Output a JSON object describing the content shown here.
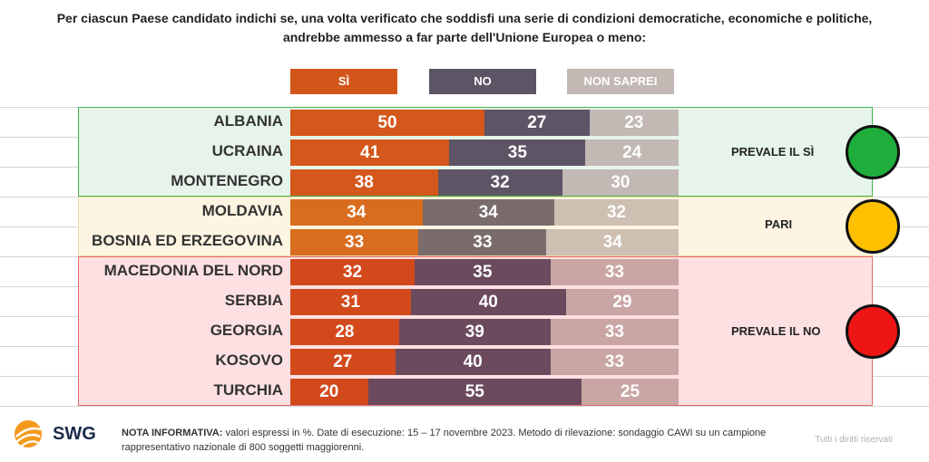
{
  "title_lines": [
    "Per ciascun Paese candidato indichi se, una volta verificato che soddisfi una serie di condizioni democratiche, economiche e politiche,",
    "andrebbe ammesso a far parte dell'Unione Europea o meno:"
  ],
  "legend": [
    "SÌ",
    "NO",
    "NON SAPREI"
  ],
  "colors": {
    "legend": [
      "#d2561a",
      "#5c5566",
      "#c2b8b4"
    ],
    "groups": {
      "green": {
        "border": "#43b54a",
        "fill": "#e6f4ea",
        "si": "#d4571c",
        "no": "#5d5565",
        "ns": "#c2b8b4"
      },
      "yellow": {
        "border": "#eed9a4",
        "fill": "#fdf5e2",
        "si": "#d96d1f",
        "no": "#7a6c6c",
        "ns": "#cdbfb2"
      },
      "red": {
        "border": "#e06a6a",
        "fill": "#fde0e2",
        "si": "#d2491c",
        "no": "#6c4a5e",
        "ns": "#c9a5a3"
      }
    },
    "lights": {
      "green": "#1fae3b",
      "yellow": "#ffc000",
      "red": "#ee1515"
    }
  },
  "groups": [
    {
      "key": "green",
      "verdict": "PREVALE IL SÌ",
      "light": "green"
    },
    {
      "key": "yellow",
      "verdict": "PARI",
      "light": "yellow"
    },
    {
      "key": "red",
      "verdict": "PREVALE IL NO",
      "light": "red"
    }
  ],
  "chart_data": {
    "type": "bar",
    "stacked": true,
    "orientation": "horizontal",
    "unit": "%",
    "categories": [
      "ALBANIA",
      "UCRAINA",
      "MONTENEGRO",
      "MOLDAVIA",
      "BOSNIA ED ERZEGOVINA",
      "MACEDONIA DEL NORD",
      "SERBIA",
      "GEORGIA",
      "KOSOVO",
      "TURCHIA"
    ],
    "category_group": [
      "green",
      "green",
      "green",
      "yellow",
      "yellow",
      "red",
      "red",
      "red",
      "red",
      "red"
    ],
    "series": [
      {
        "name": "SÌ",
        "values": [
          50,
          41,
          38,
          34,
          33,
          32,
          31,
          28,
          27,
          20
        ]
      },
      {
        "name": "NO",
        "values": [
          27,
          35,
          32,
          34,
          33,
          35,
          40,
          39,
          40,
          55
        ]
      },
      {
        "name": "NON SAPREI",
        "values": [
          23,
          24,
          30,
          32,
          34,
          33,
          29,
          33,
          33,
          25
        ]
      }
    ],
    "xlim": [
      0,
      100
    ],
    "legend_position": "top"
  },
  "footer": {
    "brand": "SWG",
    "note_label": "NOTA INFORMATIVA:",
    "note_text": " valori espressi in %. Date di esecuzione: 15 – 17 novembre 2023. Metodo di rilevazione: sondaggio CAWI su un campione rappresentativo nazionale di 800 soggetti maggiorenni.",
    "rights": "Tutti i diritti riservati"
  }
}
